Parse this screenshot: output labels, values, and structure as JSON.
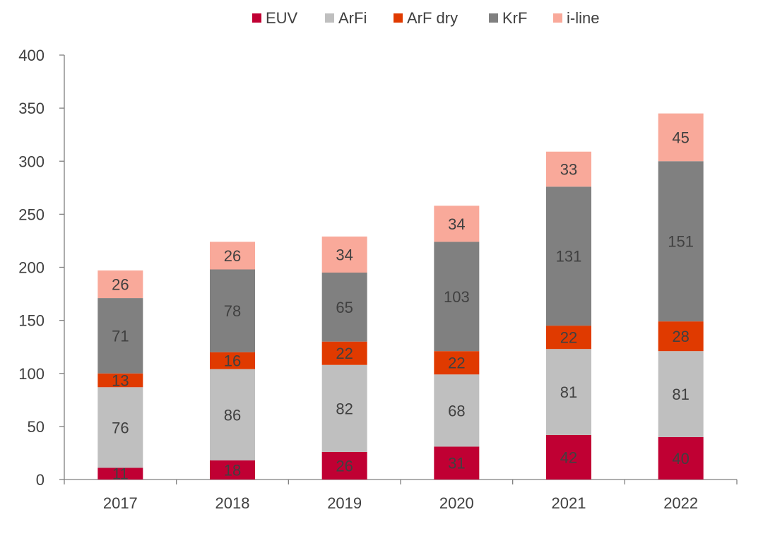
{
  "chart_data": {
    "type": "bar",
    "stacked": true,
    "categories": [
      "2017",
      "2018",
      "2019",
      "2020",
      "2021",
      "2022"
    ],
    "series": [
      {
        "name": "EUV",
        "color": "#c00033",
        "values": [
          11,
          18,
          26,
          31,
          42,
          40
        ]
      },
      {
        "name": "ArFi",
        "color": "#bfbfbf",
        "values": [
          76,
          86,
          82,
          68,
          81,
          81
        ]
      },
      {
        "name": "ArF dry",
        "color": "#e03a00",
        "values": [
          13,
          16,
          22,
          22,
          22,
          28
        ]
      },
      {
        "name": "KrF",
        "color": "#808080",
        "values": [
          71,
          78,
          65,
          103,
          131,
          151
        ]
      },
      {
        "name": "i-line",
        "color": "#f9a99a",
        "values": [
          26,
          26,
          34,
          34,
          33,
          45
        ]
      }
    ],
    "title": "",
    "xlabel": "",
    "ylabel": "",
    "ylim": [
      0,
      400
    ],
    "yticks": [
      0,
      50,
      100,
      150,
      200,
      250,
      300,
      350,
      400
    ],
    "grid": false,
    "legend": "top-center"
  }
}
